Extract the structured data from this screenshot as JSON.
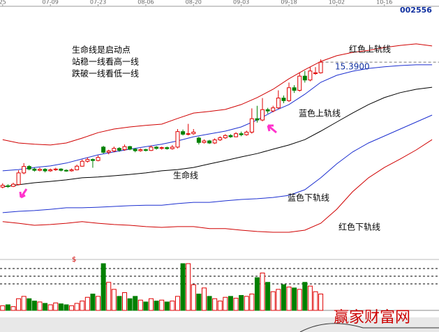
{
  "chart_data": {
    "type": "candlestick",
    "code": "002556",
    "watermark": "赢家财富网",
    "marker": "$",
    "xlim": [
      -0.5,
      82.3
    ],
    "ylim": [
      7.8,
      17.8
    ],
    "xticks": [
      {
        "value": 0,
        "label": "25"
      },
      {
        "value": 9,
        "label": "07-09"
      },
      {
        "value": 18,
        "label": "07-23"
      },
      {
        "value": 27,
        "label": "08-06"
      },
      {
        "value": 36,
        "label": "08-20"
      },
      {
        "value": 45,
        "label": "09-03"
      },
      {
        "value": 54,
        "label": "09-18"
      },
      {
        "value": 63,
        "label": "10-02"
      },
      {
        "value": 72,
        "label": "10-16"
      }
    ],
    "up_color": "#e00000",
    "down_color": "#008000",
    "open": [
      10.55,
      10.6,
      10.58,
      10.65,
      11.1,
      11.35,
      11.25,
      11.2,
      11.24,
      11.18,
      11.22,
      11.25,
      11.2,
      11.18,
      11.22,
      11.36,
      11.55,
      11.62,
      11.58,
      12.1,
      11.9,
      11.95,
      12.05,
      12.0,
      12.12,
      12.02,
      11.96,
      12.0,
      11.97,
      12.1,
      12.05,
      12.08,
      12.04,
      12.1,
      12.7,
      12.6,
      12.62,
      12.45,
      12.28,
      12.34,
      12.26,
      12.38,
      12.46,
      12.55,
      12.5,
      12.62,
      12.58,
      12.68,
      13.2,
      13.15,
      13.55,
      13.5,
      13.62,
      14.0,
      13.9,
      14.4,
      14.3,
      14.85,
      14.7,
      14.95,
      14.98
    ],
    "high": [
      10.7,
      10.66,
      10.72,
      11.2,
      11.48,
      11.4,
      11.3,
      11.3,
      11.28,
      11.27,
      11.3,
      11.28,
      11.24,
      11.27,
      11.42,
      11.62,
      11.7,
      11.66,
      11.78,
      12.15,
      12.0,
      12.12,
      12.1,
      12.2,
      12.15,
      12.06,
      12.05,
      12.04,
      12.16,
      12.14,
      12.12,
      12.12,
      12.18,
      12.8,
      12.78,
      13.0,
      12.8,
      12.5,
      12.4,
      12.38,
      12.44,
      12.52,
      12.6,
      12.6,
      12.68,
      12.7,
      12.74,
      13.6,
      13.7,
      14.0,
      13.62,
      13.7,
      14.3,
      14.1,
      14.6,
      14.5,
      15.0,
      15.05,
      15.2,
      15.2,
      15.5
    ],
    "low": [
      10.5,
      10.52,
      10.55,
      10.62,
      11.05,
      11.2,
      11.15,
      11.16,
      11.12,
      11.14,
      11.18,
      11.16,
      11.14,
      11.15,
      11.2,
      11.34,
      11.5,
      11.3,
      11.55,
      11.85,
      11.82,
      11.9,
      11.92,
      11.96,
      11.98,
      11.9,
      11.92,
      11.93,
      11.95,
      12.0,
      12.0,
      12.0,
      12.0,
      12.05,
      12.55,
      12.55,
      12.58,
      12.2,
      12.24,
      12.22,
      12.22,
      12.34,
      12.42,
      12.46,
      12.48,
      12.52,
      12.54,
      12.62,
      13.05,
      13.1,
      13.4,
      13.45,
      13.58,
      13.8,
      13.85,
      14.2,
      14.25,
      14.6,
      14.65,
      14.9,
      14.95
    ],
    "close": [
      10.62,
      10.58,
      10.66,
      11.1,
      11.35,
      11.25,
      11.2,
      11.24,
      11.18,
      11.22,
      11.25,
      11.2,
      11.18,
      11.22,
      11.36,
      11.55,
      11.62,
      11.58,
      11.7,
      11.9,
      11.95,
      12.05,
      11.98,
      12.12,
      12.02,
      11.96,
      12.0,
      11.97,
      12.1,
      12.05,
      12.08,
      12.04,
      12.1,
      12.7,
      12.6,
      12.62,
      12.68,
      12.28,
      12.34,
      12.26,
      12.38,
      12.46,
      12.55,
      12.5,
      12.62,
      12.58,
      12.68,
      13.2,
      13.15,
      13.55,
      13.5,
      13.62,
      14.0,
      13.9,
      14.4,
      14.3,
      14.85,
      14.7,
      15.05,
      14.98,
      15.39
    ],
    "line_x": [
      0,
      3,
      6,
      9,
      12,
      15,
      18,
      21,
      24,
      27,
      30,
      33,
      36,
      39,
      42,
      45,
      48,
      51,
      54,
      57,
      60,
      63,
      66,
      69,
      72,
      75,
      78,
      81
    ],
    "lines": [
      {
        "color": "#d00000",
        "values": [
          12.39,
          12.26,
          12.21,
          12.18,
          12.26,
          12.45,
          12.66,
          12.8,
          12.88,
          12.94,
          12.99,
          13.21,
          13.42,
          13.48,
          13.56,
          13.75,
          14.02,
          14.34,
          14.75,
          15.1,
          15.42,
          15.64,
          15.77,
          15.85,
          15.96,
          16.04,
          16.1,
          16.02
        ]
      },
      {
        "color": "#1c2fd0",
        "values": [
          11.18,
          11.23,
          11.31,
          11.37,
          11.48,
          11.64,
          11.8,
          11.91,
          12.02,
          12.12,
          12.21,
          12.34,
          12.5,
          12.61,
          12.72,
          12.88,
          13.15,
          13.48,
          13.75,
          14.15,
          14.61,
          14.88,
          15.04,
          15.15,
          15.21,
          15.26,
          15.29,
          15.29
        ]
      },
      {
        "color": "#000000",
        "values": [
          10.56,
          10.64,
          10.72,
          10.77,
          10.83,
          10.91,
          10.94,
          10.99,
          11.04,
          11.1,
          11.18,
          11.23,
          11.31,
          11.45,
          11.58,
          11.72,
          11.85,
          12.02,
          12.18,
          12.39,
          12.72,
          13.07,
          13.42,
          13.75,
          14.02,
          14.21,
          14.34,
          14.42
        ]
      },
      {
        "color": "#1c2fd0",
        "values": [
          9.56,
          9.61,
          9.64,
          9.69,
          9.75,
          9.75,
          9.77,
          9.8,
          9.83,
          9.85,
          9.85,
          9.91,
          9.96,
          9.96,
          10.02,
          10.07,
          10.1,
          10.15,
          10.23,
          10.45,
          10.91,
          11.45,
          11.91,
          12.26,
          12.53,
          12.8,
          13.07,
          13.34
        ]
      },
      {
        "color": "#d00000",
        "values": [
          9.21,
          9.15,
          9.07,
          9.1,
          9.15,
          9.21,
          9.15,
          9.1,
          9.07,
          9.02,
          8.99,
          9.02,
          9.02,
          8.94,
          8.94,
          8.88,
          8.83,
          8.8,
          8.8,
          8.88,
          9.15,
          9.69,
          10.37,
          10.91,
          11.31,
          11.64,
          11.99,
          12.39
        ]
      }
    ],
    "price_line": {
      "value": 15.39,
      "label": "15.3900"
    },
    "volume_ylim": [
      0,
      100
    ],
    "volume": [
      10,
      12,
      8,
      25,
      30,
      25,
      20,
      18,
      15,
      12,
      16,
      14,
      12,
      10,
      15,
      20,
      28,
      35,
      30,
      100,
      60,
      45,
      30,
      38,
      25,
      30,
      22,
      18,
      25,
      20,
      22,
      18,
      20,
      30,
      100,
      100,
      55,
      35,
      48,
      30,
      25,
      20,
      28,
      30,
      26,
      32,
      30,
      35,
      70,
      80,
      60,
      40,
      45,
      55,
      50,
      48,
      45,
      60,
      52,
      40,
      35
    ],
    "notes": [
      "生命线是启动点",
      "站稳一线看高一线",
      "跌破一线看低一线"
    ],
    "labels": [
      "红色上轨线",
      "蓝色上轨线",
      "生命线",
      "蓝色下轨线",
      "红色下轨线"
    ]
  }
}
